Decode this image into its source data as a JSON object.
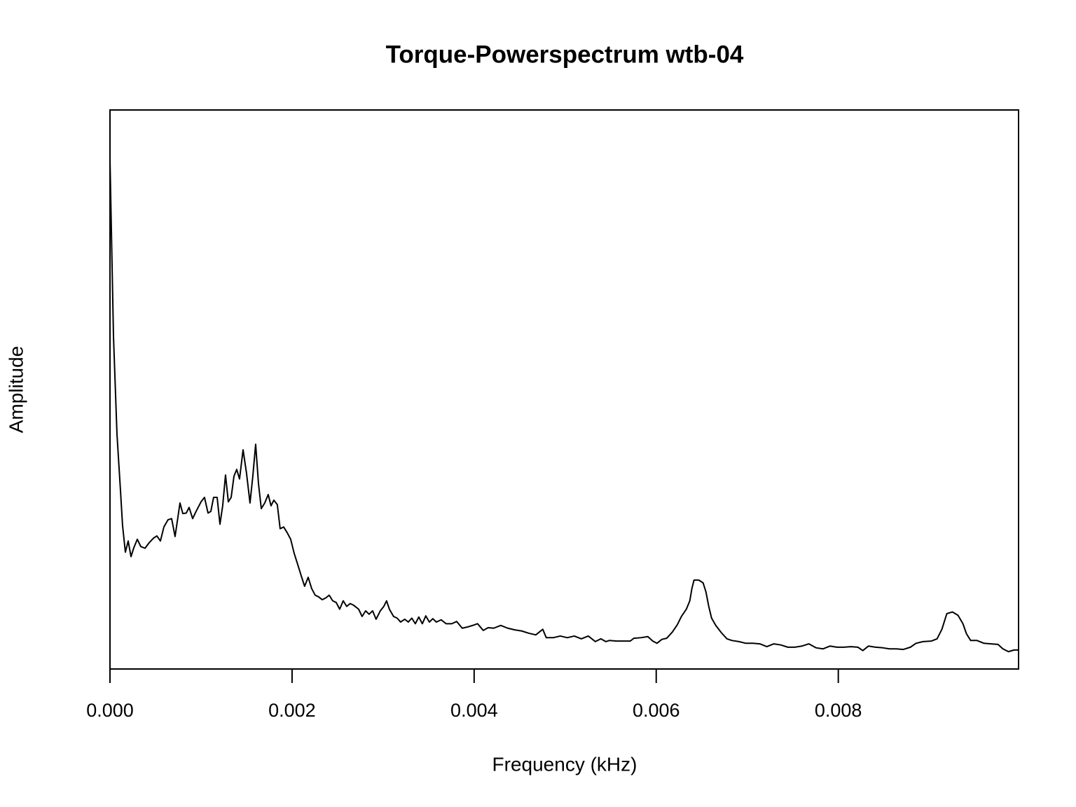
{
  "chart_data": {
    "type": "line",
    "title": "Torque-Powerspectrum wtb-04",
    "x_label": "Frequency (kHz)",
    "y_label": "Amplitude",
    "color": "#000000",
    "xlim": [
      0,
      0.00998
    ],
    "ylim": [
      0,
      100
    ],
    "xticks": [
      {
        "value": 0,
        "label": "0.000"
      },
      {
        "value": 0.002,
        "label": "0.002"
      },
      {
        "value": 0.004,
        "label": "0.004"
      },
      {
        "value": 0.006,
        "label": "0.006"
      },
      {
        "value": 0.008,
        "label": "0.008"
      }
    ],
    "x": [
      0,
      3.85e-05,
      7.69e-05,
      0.000115,
      0.000138,
      0.000169,
      0.0002,
      0.000231,
      0.000262,
      0.0003,
      0.000338,
      0.000385,
      0.000431,
      0.000477,
      0.000515,
      0.000554,
      0.000592,
      0.000638,
      0.000677,
      0.000715,
      0.000769,
      0.0008,
      0.000838,
      0.000869,
      0.000908,
      0.000946,
      0.001,
      0.001038,
      0.001077,
      0.001108,
      0.001138,
      0.001177,
      0.001208,
      0.001238,
      0.001269,
      0.0013,
      0.001331,
      0.001362,
      0.001392,
      0.001423,
      0.001462,
      0.0015,
      0.001538,
      0.001569,
      0.0016,
      0.001631,
      0.001662,
      0.0017,
      0.001738,
      0.001769,
      0.0018,
      0.001838,
      0.001869,
      0.001908,
      0.001946,
      0.001985,
      0.002023,
      0.002062,
      0.0021,
      0.002138,
      0.002177,
      0.002215,
      0.002254,
      0.002292,
      0.002331,
      0.002369,
      0.002408,
      0.002446,
      0.002485,
      0.002523,
      0.002562,
      0.0026,
      0.002638,
      0.002677,
      0.002731,
      0.002769,
      0.002808,
      0.002846,
      0.002885,
      0.002923,
      0.002969,
      0.003008,
      0.003038,
      0.003069,
      0.003115,
      0.003154,
      0.003192,
      0.003238,
      0.003277,
      0.003315,
      0.003354,
      0.003392,
      0.003431,
      0.003469,
      0.003508,
      0.003546,
      0.003585,
      0.003638,
      0.003692,
      0.003754,
      0.003808,
      0.003869,
      0.003923,
      0.003985,
      0.004038,
      0.0041,
      0.004154,
      0.004215,
      0.004292,
      0.004369,
      0.004446,
      0.004523,
      0.0046,
      0.004677,
      0.004754,
      0.004792,
      0.004869,
      0.004946,
      0.005023,
      0.0051,
      0.005177,
      0.005254,
      0.005331,
      0.005392,
      0.005446,
      0.005485,
      0.005562,
      0.005638,
      0.005715,
      0.005754,
      0.005831,
      0.005908,
      0.005962,
      0.006008,
      0.006062,
      0.006115,
      0.006177,
      0.006231,
      0.006277,
      0.006331,
      0.006369,
      0.006392,
      0.006415,
      0.006469,
      0.006515,
      0.006546,
      0.006577,
      0.006608,
      0.006654,
      0.006715,
      0.006777,
      0.006831,
      0.006908,
      0.006985,
      0.007062,
      0.007138,
      0.007215,
      0.007292,
      0.007369,
      0.007446,
      0.007523,
      0.0076,
      0.007677,
      0.007754,
      0.007831,
      0.007908,
      0.007985,
      0.008062,
      0.008138,
      0.008215,
      0.008269,
      0.008331,
      0.008408,
      0.008485,
      0.008562,
      0.008638,
      0.008715,
      0.008792,
      0.008854,
      0.008931,
      0.009023,
      0.009085,
      0.009138,
      0.009192,
      0.009254,
      0.009315,
      0.009369,
      0.009408,
      0.009454,
      0.009523,
      0.0096,
      0.009677,
      0.009754,
      0.009808,
      0.009869,
      0.009931,
      0.009977
    ],
    "values": [
      91.1,
      59.5,
      42.0,
      32.0,
      25.7,
      20.9,
      22.9,
      20.1,
      21.7,
      23.2,
      21.9,
      21.6,
      22.6,
      23.4,
      23.8,
      22.9,
      25.4,
      26.7,
      26.9,
      23.7,
      29.7,
      27.8,
      27.9,
      28.9,
      26.9,
      28.2,
      29.9,
      30.7,
      27.9,
      28.2,
      30.7,
      30.7,
      25.9,
      29.2,
      34.7,
      29.9,
      30.7,
      34.5,
      35.7,
      34.0,
      39.2,
      35.0,
      29.7,
      34.5,
      40.2,
      33.2,
      28.7,
      29.7,
      31.2,
      29.2,
      30.2,
      29.4,
      25.1,
      25.4,
      24.4,
      23.2,
      20.7,
      18.7,
      16.7,
      14.8,
      16.4,
      14.4,
      13.2,
      12.9,
      12.4,
      12.7,
      13.2,
      12.2,
      11.9,
      10.7,
      12.2,
      11.2,
      11.7,
      11.4,
      10.7,
      9.4,
      10.4,
      9.8,
      10.4,
      8.9,
      10.4,
      11.2,
      12.2,
      10.7,
      9.4,
      9.1,
      8.4,
      8.9,
      8.4,
      9.1,
      8.1,
      9.3,
      8.1,
      9.5,
      8.4,
      9.0,
      8.4,
      8.8,
      8.1,
      8.1,
      8.5,
      7.3,
      7.5,
      7.8,
      8.1,
      6.9,
      7.4,
      7.3,
      7.8,
      7.3,
      7.0,
      6.8,
      6.4,
      6.1,
      7.1,
      5.6,
      5.6,
      5.9,
      5.6,
      5.9,
      5.4,
      5.9,
      4.9,
      5.4,
      4.9,
      5.1,
      5.0,
      5.0,
      5.0,
      5.5,
      5.6,
      5.8,
      5.0,
      4.6,
      5.3,
      5.5,
      6.6,
      7.9,
      9.4,
      10.7,
      12.2,
      14.4,
      15.9,
      15.9,
      15.4,
      13.8,
      11.2,
      9.1,
      7.8,
      6.5,
      5.4,
      5.1,
      4.9,
      4.6,
      4.6,
      4.5,
      4.0,
      4.5,
      4.3,
      3.9,
      3.9,
      4.1,
      4.5,
      3.8,
      3.6,
      4.1,
      3.9,
      3.9,
      4.0,
      3.9,
      3.3,
      4.1,
      3.9,
      3.8,
      3.6,
      3.6,
      3.5,
      3.9,
      4.6,
      4.9,
      5.0,
      5.4,
      7.1,
      9.9,
      10.2,
      9.6,
      8.1,
      6.3,
      5.1,
      5.1,
      4.6,
      4.5,
      4.4,
      3.6,
      3.1,
      3.4,
      3.4
    ]
  }
}
